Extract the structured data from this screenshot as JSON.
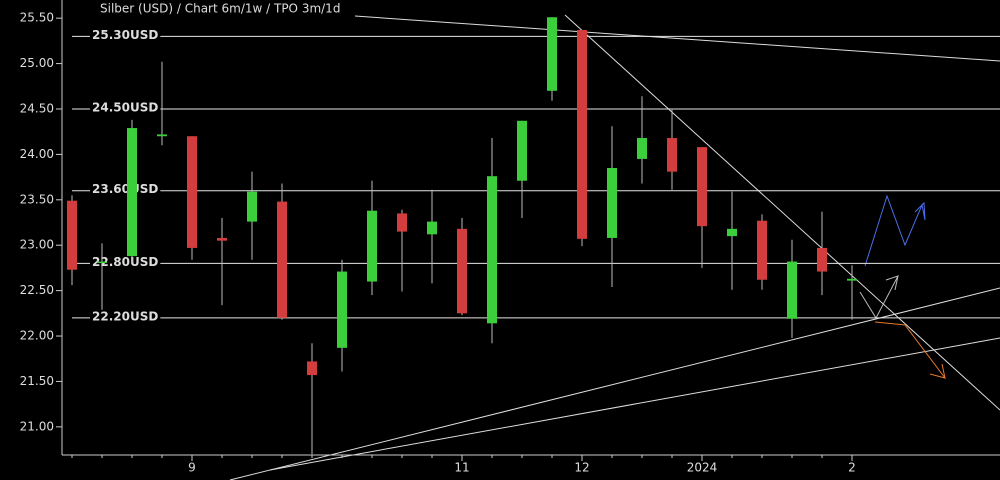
{
  "chart_data": {
    "type": "candlestick",
    "title": "Silber (USD) /  Chart 6m/1w / TPO 3m/1d",
    "categories": [
      null,
      null,
      null,
      null,
      "9",
      null,
      null,
      null,
      null,
      null,
      null,
      null,
      null,
      "11",
      null,
      null,
      null,
      "12",
      null,
      null,
      null,
      "2024",
      null,
      null,
      null,
      null,
      "2"
    ],
    "open": [
      23.49,
      22.82,
      22.88,
      24.2,
      24.2,
      23.08,
      23.26,
      23.48,
      21.72,
      21.87,
      22.6,
      23.35,
      23.12,
      23.18,
      22.14,
      23.71,
      24.7,
      25.37,
      23.08,
      23.95,
      24.18,
      24.08,
      23.1,
      23.27,
      22.19,
      22.97,
      22.61
    ],
    "high": [
      23.55,
      23.02,
      24.38,
      25.02,
      24.2,
      23.3,
      23.81,
      23.68,
      21.92,
      22.84,
      23.71,
      23.39,
      23.61,
      23.3,
      24.18,
      24.37,
      25.51,
      25.37,
      24.31,
      24.64,
      24.49,
      24.08,
      23.59,
      23.34,
      23.06,
      23.37,
      22.78
    ],
    "low": [
      22.56,
      22.29,
      22.81,
      24.1,
      22.84,
      22.34,
      22.84,
      22.18,
      20.7,
      21.61,
      22.45,
      22.49,
      22.58,
      22.23,
      21.92,
      23.3,
      24.59,
      22.99,
      22.54,
      23.68,
      23.61,
      22.75,
      22.51,
      22.51,
      21.98,
      22.45,
      22.18
    ],
    "close": [
      22.73,
      22.82,
      24.29,
      24.22,
      22.97,
      23.05,
      23.59,
      22.2,
      21.57,
      22.71,
      23.38,
      23.15,
      23.26,
      22.25,
      23.76,
      24.37,
      25.51,
      23.07,
      23.85,
      24.18,
      23.81,
      23.21,
      23.18,
      22.62,
      22.82,
      22.71,
      22.63
    ],
    "up_color": "#3ccf3c",
    "down_color": "#d43d3d",
    "ylim": [
      20.69,
      25.7
    ],
    "yticks": [
      {
        "value": 21,
        "label": "21.00"
      },
      {
        "value": 21.5,
        "label": "21.50"
      },
      {
        "value": 22,
        "label": "22.00"
      },
      {
        "value": 22.5,
        "label": "22.50"
      },
      {
        "value": 23,
        "label": "23.00"
      },
      {
        "value": 23.5,
        "label": "23.50"
      },
      {
        "value": 24,
        "label": "24.00"
      },
      {
        "value": 24.5,
        "label": "24.50"
      },
      {
        "value": 25,
        "label": "25.00"
      },
      {
        "value": 25.5,
        "label": "25.50"
      }
    ],
    "levels": [
      {
        "value": 25.3,
        "label": "25.30USD"
      },
      {
        "value": 24.5,
        "label": "24.50USD"
      },
      {
        "value": 23.6,
        "label": "23.60USD"
      },
      {
        "value": 22.8,
        "label": "22.80USD"
      },
      {
        "value": 22.2,
        "label": "22.20USD"
      }
    ]
  }
}
